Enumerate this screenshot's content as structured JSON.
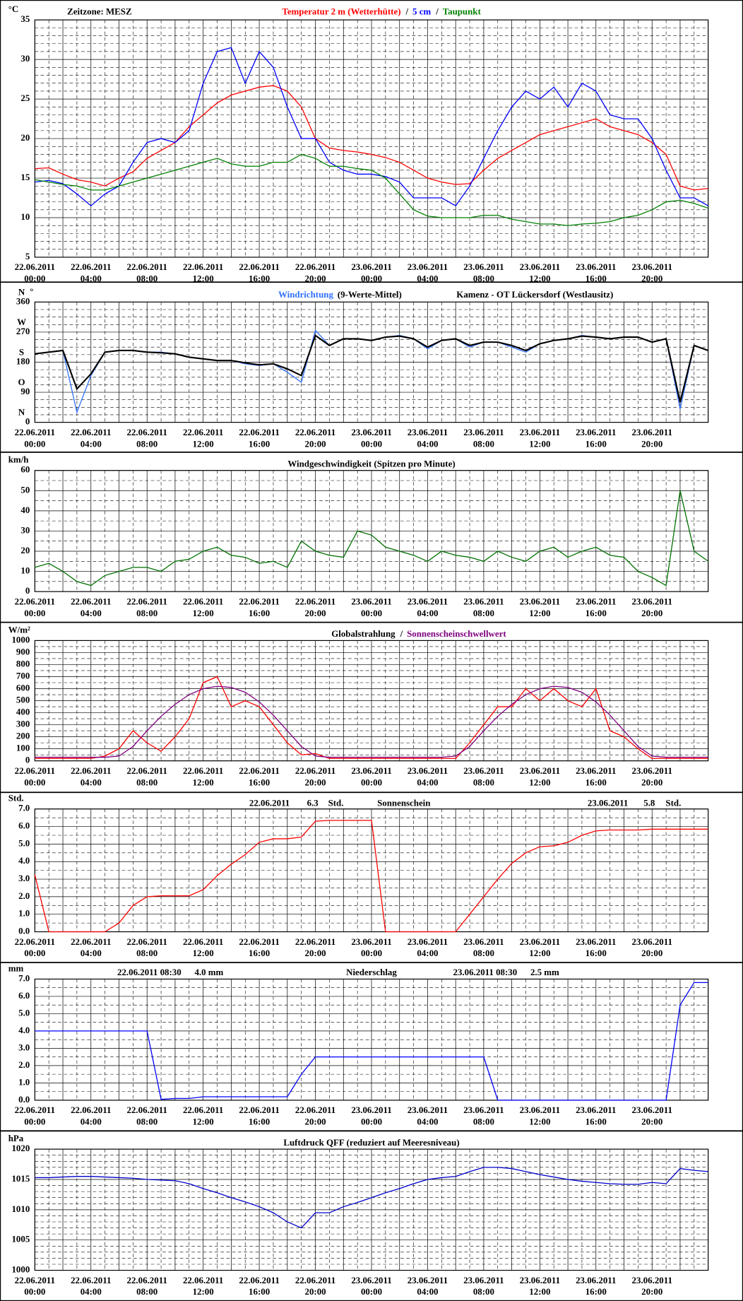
{
  "x_axis": {
    "xlim": [
      0,
      48
    ],
    "x": [
      0,
      1,
      2,
      3,
      4,
      5,
      6,
      7,
      8,
      9,
      10,
      11,
      12,
      13,
      14,
      15,
      16,
      17,
      18,
      19,
      20,
      21,
      22,
      23,
      24,
      25,
      26,
      27,
      28,
      29,
      30,
      31,
      32,
      33,
      34,
      35,
      36,
      37,
      38,
      39,
      40,
      41,
      42,
      43,
      44,
      45,
      46,
      47,
      48
    ],
    "xticks": [
      {
        "value": 0,
        "label": "00:00",
        "date": "22.06.2011"
      },
      {
        "value": 4,
        "label": "04:00",
        "date": "22.06.2011"
      },
      {
        "value": 8,
        "label": "08:00",
        "date": "22.06.2011"
      },
      {
        "value": 12,
        "label": "12:00",
        "date": "22.06.2011"
      },
      {
        "value": 16,
        "label": "16:00",
        "date": "22.06.2011"
      },
      {
        "value": 20,
        "label": "20:00",
        "date": "22.06.2011"
      },
      {
        "value": 24,
        "label": "00:00",
        "date": "23.06.2011"
      },
      {
        "value": 28,
        "label": "04:00",
        "date": "23.06.2011"
      },
      {
        "value": 32,
        "label": "08:00",
        "date": "23.06.2011"
      },
      {
        "value": 36,
        "label": "12:00",
        "date": "23.06.2011"
      },
      {
        "value": 40,
        "label": "16:00",
        "date": "23.06.2011"
      },
      {
        "value": 44,
        "label": "20:00",
        "date": "23.06.2011"
      }
    ]
  },
  "chart_data": [
    {
      "type": "line",
      "unit": "°C",
      "subtitle": "Zeitzone: MESZ",
      "legend_separator": "/",
      "ylim": [
        5,
        35
      ],
      "yticks": [
        5,
        10,
        15,
        20,
        25,
        30,
        35
      ],
      "grid": true,
      "series": [
        {
          "name": "Temperatur 2 m (Wetterhütte)",
          "color": "#ff0000",
          "values": [
            16.2,
            16.3,
            15.5,
            14.8,
            14.5,
            14.0,
            15.0,
            15.8,
            17.5,
            18.5,
            19.5,
            21.5,
            23.0,
            24.5,
            25.5,
            26.0,
            26.5,
            26.7,
            26.0,
            24.0,
            20.0,
            18.8,
            18.5,
            18.3,
            18.0,
            17.6,
            17.0,
            16.0,
            15.0,
            14.5,
            14.2,
            14.3,
            16.0,
            17.5,
            18.5,
            19.5,
            20.5,
            21.0,
            21.5,
            22.0,
            22.5,
            21.5,
            21.0,
            20.5,
            19.5,
            18.0,
            14.0,
            13.5,
            13.7
          ]
        },
        {
          "name": "5 cm",
          "color": "#0000ff",
          "values": [
            14.5,
            14.7,
            14.3,
            13.0,
            11.5,
            13.0,
            14.0,
            17.0,
            19.5,
            20.0,
            19.5,
            21.0,
            27.0,
            31.0,
            31.5,
            27.0,
            31.0,
            29.0,
            24.0,
            20.0,
            20.0,
            17.0,
            16.0,
            15.5,
            15.5,
            15.2,
            14.5,
            12.5,
            12.5,
            12.5,
            11.5,
            14.0,
            17.5,
            21.0,
            24.0,
            26.0,
            25.0,
            26.5,
            24.0,
            27.0,
            26.0,
            23.0,
            22.5,
            22.5,
            20.0,
            16.0,
            12.5,
            12.5,
            11.5
          ]
        },
        {
          "name": "Taupunkt",
          "color": "#008000",
          "values": [
            14.8,
            14.5,
            14.2,
            14.0,
            13.5,
            13.5,
            14.0,
            14.5,
            15.0,
            15.5,
            16.0,
            16.5,
            17.0,
            17.5,
            16.8,
            16.5,
            16.5,
            17.0,
            17.0,
            18.0,
            17.5,
            16.5,
            16.5,
            16.2,
            16.0,
            15.0,
            13.0,
            11.0,
            10.2,
            10.0,
            10.0,
            10.0,
            10.3,
            10.3,
            9.8,
            9.5,
            9.2,
            9.2,
            9.0,
            9.2,
            9.3,
            9.5,
            10.0,
            10.3,
            11.0,
            12.0,
            12.2,
            11.8,
            11.2
          ]
        }
      ]
    },
    {
      "type": "line",
      "unit": "°",
      "subtitle": "Kamenz - OT Lückersdorf (Westlausitz)",
      "ylim": [
        0,
        360
      ],
      "yticks": [
        0,
        90,
        180,
        270,
        360
      ],
      "grid": true,
      "direction_labels": [
        {
          "value": 360,
          "label": "N"
        },
        {
          "value": 270,
          "label": "W"
        },
        {
          "value": 180,
          "label": "S"
        },
        {
          "value": 90,
          "label": "O"
        },
        {
          "value": 0,
          "label": "N"
        }
      ],
      "series": [
        {
          "name": "Windrichtung",
          "color": "#2f6fff",
          "values": [
            205,
            210,
            215,
            30,
            140,
            210,
            215,
            215,
            210,
            210,
            205,
            195,
            190,
            185,
            185,
            175,
            170,
            175,
            150,
            120,
            275,
            230,
            250,
            250,
            245,
            255,
            260,
            250,
            220,
            245,
            250,
            225,
            240,
            240,
            225,
            210,
            235,
            245,
            250,
            260,
            255,
            250,
            255,
            255,
            240,
            250,
            40,
            230,
            215
          ]
        },
        {
          "name": "(9-Werte-Mittel)",
          "color": "#000000",
          "values": [
            205,
            210,
            215,
            100,
            145,
            210,
            215,
            215,
            210,
            208,
            205,
            195,
            190,
            185,
            185,
            178,
            172,
            175,
            160,
            140,
            260,
            230,
            250,
            250,
            245,
            255,
            258,
            250,
            225,
            245,
            250,
            230,
            240,
            240,
            230,
            215,
            235,
            245,
            250,
            258,
            255,
            250,
            255,
            255,
            240,
            250,
            60,
            230,
            215
          ]
        }
      ]
    },
    {
      "type": "line",
      "unit": "km/h",
      "title": "Windgeschwindigkeit (Spitzen pro Minute)",
      "ylim": [
        0,
        60
      ],
      "yticks": [
        0,
        10,
        20,
        30,
        40,
        50,
        60
      ],
      "grid": true,
      "series": [
        {
          "color": "#007000",
          "values": [
            12,
            14,
            10,
            5,
            3,
            8,
            10,
            12,
            12,
            10,
            15,
            16,
            20,
            22,
            18,
            17,
            14,
            15,
            12,
            25,
            20,
            18,
            17,
            30,
            28,
            22,
            20,
            18,
            15,
            20,
            18,
            17,
            15,
            20,
            17,
            15,
            20,
            22,
            17,
            20,
            22,
            18,
            17,
            10,
            7,
            3,
            50,
            20,
            15
          ]
        }
      ]
    },
    {
      "type": "line",
      "unit": "W/m²",
      "legend_separator": "/",
      "ylim": [
        0,
        1000
      ],
      "yticks": [
        0,
        100,
        200,
        300,
        400,
        500,
        600,
        700,
        800,
        900,
        1000
      ],
      "grid": true,
      "series": [
        {
          "name": "Globalstrahlung",
          "color": "#ff0000",
          "label_color": "#000000",
          "values": [
            20,
            20,
            20,
            20,
            20,
            40,
            100,
            250,
            150,
            80,
            200,
            350,
            650,
            700,
            450,
            500,
            450,
            300,
            150,
            50,
            60,
            20,
            20,
            20,
            20,
            20,
            20,
            20,
            20,
            20,
            20,
            150,
            300,
            450,
            450,
            600,
            500,
            600,
            500,
            450,
            600,
            250,
            200,
            100,
            20,
            20,
            20,
            20,
            20
          ]
        },
        {
          "name": "Sonnenscheinschwellwert",
          "color": "#800080",
          "values": [
            30,
            30,
            30,
            30,
            30,
            30,
            40,
            120,
            250,
            370,
            470,
            550,
            600,
            620,
            610,
            570,
            490,
            380,
            250,
            120,
            40,
            30,
            30,
            30,
            30,
            30,
            30,
            30,
            30,
            30,
            40,
            120,
            250,
            370,
            470,
            550,
            600,
            620,
            610,
            570,
            490,
            380,
            250,
            120,
            40,
            30,
            30,
            30,
            30
          ]
        }
      ]
    },
    {
      "type": "line",
      "unit": "Std.",
      "title": "Sonnenschein",
      "annotations": [
        "22.06.2011",
        "6.3",
        "Std.",
        "23.06.2011",
        "5.8",
        "Std."
      ],
      "ylim": [
        0,
        7
      ],
      "yticks": [
        {
          "value": 0,
          "label": "0.0"
        },
        {
          "value": 1,
          "label": "1.0"
        },
        {
          "value": 2,
          "label": "2.0"
        },
        {
          "value": 3,
          "label": "3.0"
        },
        {
          "value": 4,
          "label": "4.0"
        },
        {
          "value": 5,
          "label": "5.0"
        },
        {
          "value": 6,
          "label": "6.0"
        },
        {
          "value": 7,
          "label": "7.0"
        }
      ],
      "grid": true,
      "series": [
        {
          "color": "#ff0000",
          "values": [
            3.25,
            0,
            0,
            0,
            0,
            0,
            0.5,
            1.5,
            2.0,
            2.05,
            2.05,
            2.05,
            2.4,
            3.2,
            3.85,
            4.4,
            5.1,
            5.3,
            5.3,
            5.4,
            6.3,
            6.35,
            6.35,
            6.35,
            6.35,
            0,
            0,
            0,
            0,
            0,
            0,
            1.0,
            2.0,
            3.0,
            3.9,
            4.5,
            4.85,
            4.9,
            5.1,
            5.5,
            5.75,
            5.8,
            5.8,
            5.8,
            5.85,
            5.85,
            5.85,
            5.85,
            5.85
          ]
        }
      ]
    },
    {
      "type": "line",
      "unit": "mm",
      "title": "Niederschlag",
      "annotations": [
        "22.06.2011 08:30",
        "4.0  mm",
        "23.06.2011 08:30",
        "2.5  mm"
      ],
      "ylim": [
        0,
        7
      ],
      "yticks": [
        {
          "value": 0,
          "label": "0.0"
        },
        {
          "value": 1,
          "label": "1.0"
        },
        {
          "value": 2,
          "label": "2.0"
        },
        {
          "value": 3,
          "label": "3.0"
        },
        {
          "value": 4,
          "label": "4.0"
        },
        {
          "value": 5,
          "label": "5.0"
        },
        {
          "value": 6,
          "label": "6.0"
        },
        {
          "value": 7,
          "label": "7.0"
        }
      ],
      "grid": true,
      "series": [
        {
          "color": "#0000ff",
          "values": [
            4.0,
            4.0,
            4.0,
            4.0,
            4.0,
            4.0,
            4.0,
            4.0,
            4.0,
            0.05,
            0.1,
            0.1,
            0.2,
            0.2,
            0.2,
            0.2,
            0.2,
            0.2,
            0.2,
            1.5,
            2.5,
            2.5,
            2.5,
            2.5,
            2.5,
            2.5,
            2.5,
            2.5,
            2.5,
            2.5,
            2.5,
            2.5,
            2.5,
            0,
            0,
            0,
            0,
            0,
            0,
            0,
            0,
            0,
            0,
            0,
            0,
            0,
            5.5,
            6.8,
            6.8
          ]
        }
      ]
    },
    {
      "type": "line",
      "unit": "hPa",
      "title": "Luftdruck QFF (reduziert auf Meeresniveau)",
      "ylim": [
        1000,
        1020
      ],
      "yticks": [
        1000,
        1005,
        1010,
        1015,
        1020
      ],
      "grid": true,
      "series": [
        {
          "color": "#0000cc",
          "values": [
            1015.3,
            1015.3,
            1015.4,
            1015.5,
            1015.5,
            1015.4,
            1015.3,
            1015.2,
            1015.0,
            1014.9,
            1014.8,
            1014.3,
            1013.5,
            1012.8,
            1012.0,
            1011.3,
            1010.5,
            1009.5,
            1008.0,
            1007.0,
            1009.5,
            1009.5,
            1010.5,
            1011.2,
            1012.0,
            1012.8,
            1013.5,
            1014.3,
            1015.0,
            1015.3,
            1015.5,
            1016.3,
            1017.0,
            1017.0,
            1016.8,
            1016.3,
            1015.8,
            1015.4,
            1015.0,
            1014.7,
            1014.5,
            1014.3,
            1014.2,
            1014.2,
            1014.5,
            1014.3,
            1016.8,
            1016.5,
            1016.3
          ]
        }
      ]
    }
  ]
}
